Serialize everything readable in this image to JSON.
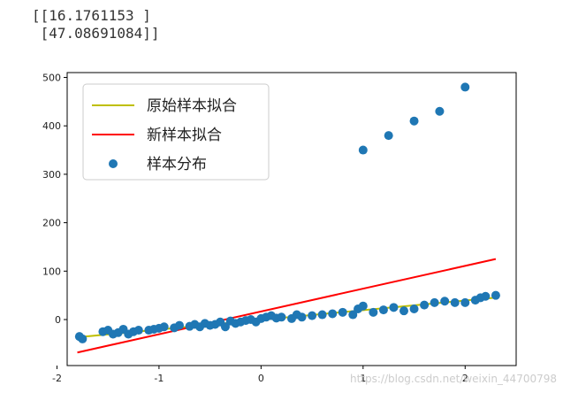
{
  "output": {
    "lines": [
      "[[16.1761153 ]",
      " [47.08691084]]"
    ]
  },
  "chart_data": {
    "type": "scatter",
    "xlim": [
      -1.9,
      2.5
    ],
    "ylim": [
      -95,
      510
    ],
    "xticks": [
      -2,
      -1,
      0,
      1,
      2
    ],
    "yticks": [
      0,
      100,
      200,
      300,
      400,
      500
    ],
    "grid": false,
    "legend_position": "top-left",
    "legend": [
      "原始样本拟合",
      "新样本拟合",
      "样本分布"
    ],
    "colors": {
      "original_fit": "#bfbf00",
      "new_fit": "#ff0000",
      "scatter": "#1f77b4"
    },
    "series": [
      {
        "name": "原始样本拟合",
        "kind": "line",
        "x": [
          -1.8,
          2.3
        ],
        "y": [
          -36.6,
          45.3
        ]
      },
      {
        "name": "新样本拟合",
        "kind": "line",
        "x": [
          -1.8,
          2.3
        ],
        "y": [
          -68,
          125
        ]
      },
      {
        "name": "样本分布",
        "kind": "scatter",
        "x": [
          -1.78,
          -1.75,
          -1.55,
          -1.5,
          -1.45,
          -1.4,
          -1.35,
          -1.3,
          -1.25,
          -1.2,
          -1.1,
          -1.05,
          -1.0,
          -0.95,
          -0.85,
          -0.8,
          -0.7,
          -0.65,
          -0.6,
          -0.55,
          -0.5,
          -0.45,
          -0.4,
          -0.35,
          -0.3,
          -0.25,
          -0.2,
          -0.15,
          -0.1,
          -0.05,
          0.0,
          0.05,
          0.1,
          0.15,
          0.2,
          0.3,
          0.35,
          0.4,
          0.5,
          0.6,
          0.7,
          0.8,
          0.9,
          0.95,
          1.0,
          1.1,
          1.2,
          1.3,
          1.4,
          1.5,
          1.6,
          1.7,
          1.8,
          1.9,
          2.0,
          2.1,
          2.15,
          2.2,
          2.3,
          1.0,
          1.25,
          1.5,
          1.75,
          2.0
        ],
        "y": [
          -35,
          -40,
          -25,
          -22,
          -30,
          -27,
          -20,
          -30,
          -25,
          -22,
          -22,
          -20,
          -18,
          -15,
          -17,
          -12,
          -14,
          -10,
          -15,
          -8,
          -12,
          -10,
          -5,
          -15,
          -3,
          -8,
          -5,
          -2,
          0,
          -5,
          2,
          5,
          8,
          3,
          5,
          2,
          10,
          5,
          8,
          10,
          12,
          15,
          10,
          22,
          28,
          15,
          20,
          25,
          18,
          22,
          30,
          35,
          38,
          35,
          35,
          40,
          45,
          48,
          50,
          350,
          380,
          410,
          430,
          480
        ]
      }
    ]
  },
  "watermark": "https://blog.csdn.net/weixin_44700798"
}
